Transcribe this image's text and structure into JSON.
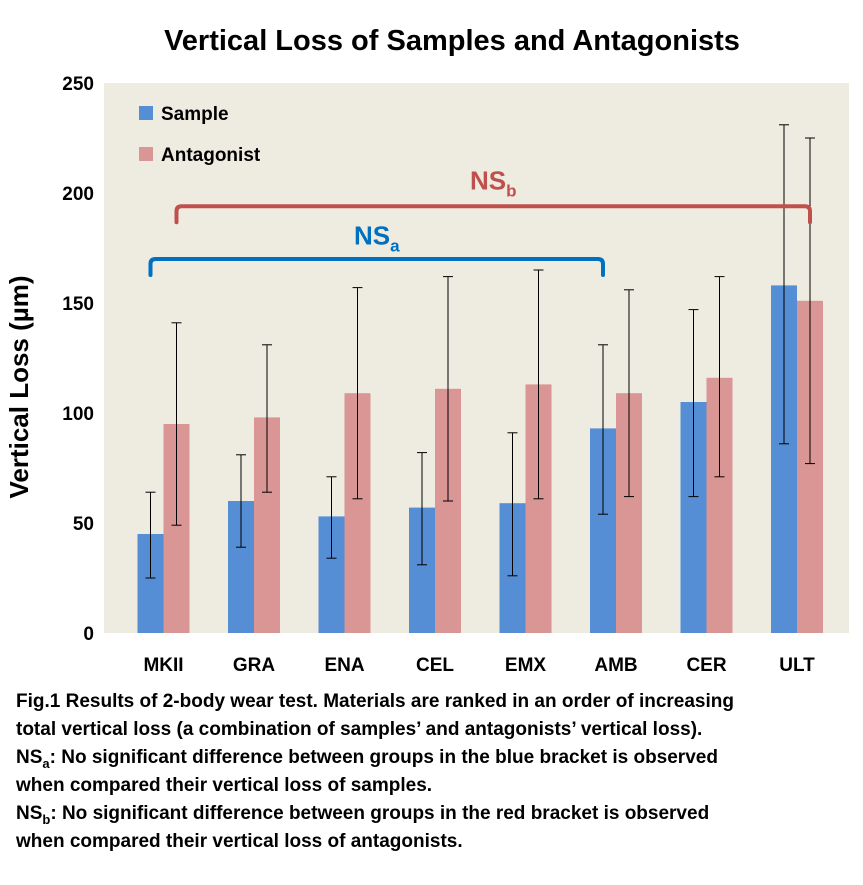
{
  "chart_data": {
    "type": "bar",
    "title": "Vertical Loss of Samples and Antagonists",
    "xlabel": "",
    "ylabel": "Vertical Loss  (µm)",
    "ylim": [
      0,
      250
    ],
    "yticks": [
      0,
      50,
      100,
      150,
      200,
      250
    ],
    "grid": false,
    "legend_position": "top-left",
    "plot_background": "#eeebe0",
    "categories": [
      "MKII",
      "GRA",
      "ENA",
      "CEL",
      "EMX",
      "AMB",
      "CER",
      "ULT"
    ],
    "series": [
      {
        "name": "Sample",
        "color": "#558ed5",
        "values": [
          45,
          60,
          53,
          57,
          59,
          93,
          105,
          158
        ],
        "error_low": [
          25,
          39,
          34,
          31,
          26,
          54,
          62,
          86
        ],
        "error_high": [
          64,
          81,
          71,
          82,
          91,
          131,
          147,
          231
        ]
      },
      {
        "name": "Antagonist",
        "color": "#d99694",
        "values": [
          95,
          98,
          109,
          111,
          113,
          109,
          116,
          151
        ],
        "error_low": [
          49,
          64,
          61,
          60,
          61,
          62,
          71,
          77
        ],
        "error_high": [
          141,
          131,
          157,
          162,
          165,
          156,
          162,
          225
        ]
      }
    ],
    "annotations": [
      {
        "text": "NS",
        "subscript": "a",
        "color": "#0070c0",
        "from": "MKII",
        "to": "AMB",
        "bracket_value": 170,
        "label_value": 182
      },
      {
        "text": "NS",
        "subscript": "b",
        "color": "#c0504d",
        "from": "MKII",
        "to": "ULT",
        "bracket_value": 194,
        "label_value": 207
      }
    ]
  },
  "caption": {
    "line1": "Fig.1  Results of 2-body wear test. Materials are ranked in an order of increasing",
    "line2": "total vertical loss (a combination of samples’ and antagonists’ vertical loss).",
    "nsa_label": "NS",
    "nsa_sub": "a",
    "nsa_text": ": No significant difference between groups in the blue bracket  is observed",
    "nsa_text2": "when compared their vertical loss of samples.",
    "nsb_label": "NS",
    "nsb_sub": "b",
    "nsb_text": ": No significant difference between groups in the red bracket  is observed",
    "nsb_text2": "when compared their vertical loss of antagonists."
  }
}
